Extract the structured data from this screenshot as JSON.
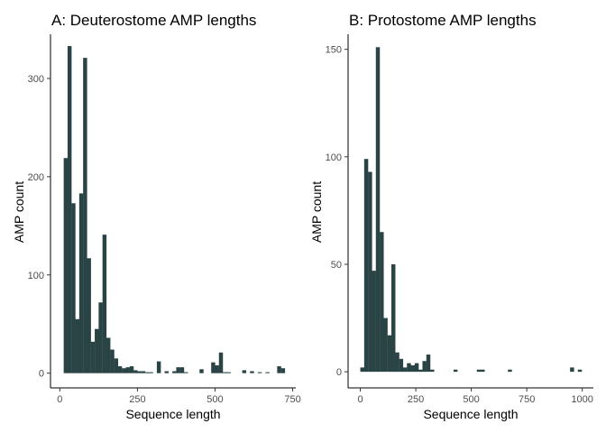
{
  "panels": [
    {
      "title": "A: Deuterostome AMP lengths",
      "xlabel": "Sequence length",
      "ylabel": "AMP count"
    },
    {
      "title": "B: Protostome AMP lengths",
      "xlabel": "Sequence length",
      "ylabel": "AMP count"
    }
  ],
  "chart_data": [
    {
      "type": "bar",
      "title": "A: Deuterostome AMP lengths",
      "xlabel": "Sequence length",
      "ylabel": "AMP count",
      "xlim": [
        -30,
        760
      ],
      "ylim": [
        -15,
        345
      ],
      "xticks": [
        0,
        250,
        500,
        750
      ],
      "yticks": [
        0,
        100,
        200,
        300
      ],
      "bin_width": 12.5,
      "bin_starts": [
        12.5,
        25,
        37.5,
        50,
        62.5,
        75,
        87.5,
        100,
        112.5,
        125,
        137.5,
        150,
        162.5,
        175,
        187.5,
        200,
        212.5,
        225,
        237.5,
        250,
        262.5,
        275,
        287.5,
        312.5,
        337.5,
        362.5,
        375,
        387.5,
        400,
        450,
        487.5,
        500,
        512.5,
        525,
        537.5,
        587.5,
        612.5,
        637.5,
        662.5,
        700,
        712.5
      ],
      "values": [
        219,
        333,
        173,
        55,
        183,
        321,
        117,
        32,
        45,
        72,
        141,
        36,
        24,
        15,
        7,
        5,
        6,
        7,
        3,
        2,
        2,
        1,
        1,
        12,
        2,
        2,
        6,
        6,
        1,
        4,
        11,
        8,
        21,
        1,
        1,
        3,
        2,
        1,
        1,
        7,
        5
      ],
      "grid": false
    },
    {
      "type": "bar",
      "title": "B: Protostome AMP lengths",
      "xlabel": "Sequence length",
      "ylabel": "AMP count",
      "xlim": [
        -55,
        1050
      ],
      "ylim": [
        -7.5,
        157
      ],
      "xticks": [
        0,
        250,
        500,
        750,
        1000
      ],
      "yticks": [
        0,
        50,
        100,
        150
      ],
      "bin_width": 17.5,
      "bin_starts": [
        0,
        17.5,
        35,
        52.5,
        70,
        87.5,
        105,
        122.5,
        140,
        157.5,
        175,
        192.5,
        210,
        227.5,
        245,
        262.5,
        280,
        297.5,
        315,
        420,
        525,
        542.5,
        665,
        945,
        980
      ],
      "values": [
        2,
        99,
        93,
        47,
        151,
        65,
        25,
        17,
        50,
        9,
        6,
        2,
        4,
        3,
        4,
        1,
        5,
        8,
        1,
        1,
        1,
        1,
        1,
        2,
        1
      ],
      "grid": false
    }
  ],
  "colors": {
    "bar": "#2a4445",
    "axis": "#000000",
    "tick_label": "#4d4d4d"
  }
}
